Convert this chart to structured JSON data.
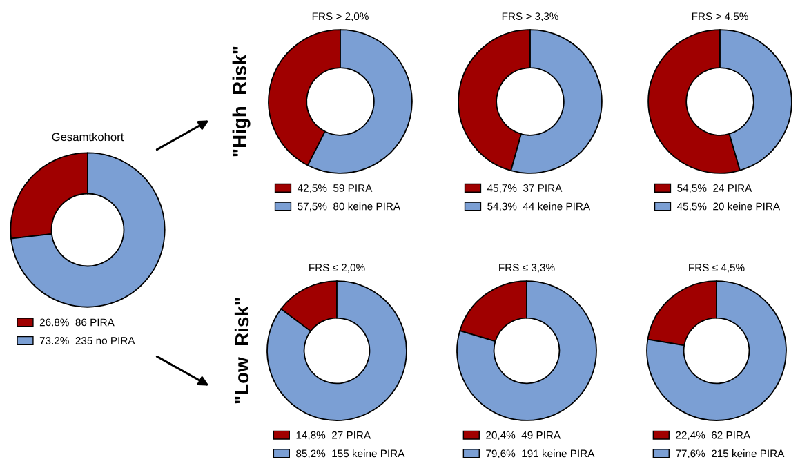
{
  "chart_data": [
    {
      "type": "donut",
      "title": "Gesamtkohort",
      "categories": [
        "26.8%  86 PIRA",
        "73.2%  235 no PIRA"
      ],
      "values": [
        26.8,
        73.2
      ],
      "colors": [
        "#a00000",
        "#7b9fd4"
      ],
      "legend": "bottom"
    },
    {
      "type": "donut",
      "title": "FRS > 2,0%",
      "ylabel": "\"High  Risk\"",
      "categories": [
        "42,5%  59 PIRA",
        "57,5%  80 keine PIRA"
      ],
      "values": [
        42.5,
        57.5
      ],
      "colors": [
        "#a00000",
        "#7b9fd4"
      ],
      "legend": "bottom"
    },
    {
      "type": "donut",
      "title": "FRS > 3,3%",
      "categories": [
        "45,7%  37 PIRA",
        "54,3%  44 keine PIRA"
      ],
      "values": [
        45.7,
        54.3
      ],
      "colors": [
        "#a00000",
        "#7b9fd4"
      ],
      "legend": "bottom"
    },
    {
      "type": "donut",
      "title": "FRS > 4,5%",
      "categories": [
        "54,5%  24 PIRA",
        "45,5%  20 keine PIRA"
      ],
      "values": [
        54.5,
        45.5
      ],
      "colors": [
        "#a00000",
        "#7b9fd4"
      ],
      "legend": "bottom"
    },
    {
      "type": "donut",
      "title": "FRS ≤ 2,0%",
      "ylabel": "\"Low  Risk\"",
      "categories": [
        "14,8%  27 PIRA",
        "85,2%  155 keine PIRA"
      ],
      "values": [
        14.8,
        85.2
      ],
      "colors": [
        "#a00000",
        "#7b9fd4"
      ],
      "legend": "bottom"
    },
    {
      "type": "donut",
      "title": "FRS ≤ 3,3%",
      "categories": [
        "20,4%  49 PIRA",
        "79,6%  191 keine PIRA"
      ],
      "values": [
        20.4,
        79.6
      ],
      "colors": [
        "#a00000",
        "#7b9fd4"
      ],
      "legend": "bottom"
    },
    {
      "type": "donut",
      "title": "FRS ≤ 4,5%",
      "categories": [
        "22,4%  62 PIRA",
        "77,6%  215 keine PIRA"
      ],
      "values": [
        22.4,
        77.6
      ],
      "colors": [
        "#a00000",
        "#7b9fd4"
      ],
      "legend": "bottom"
    }
  ]
}
